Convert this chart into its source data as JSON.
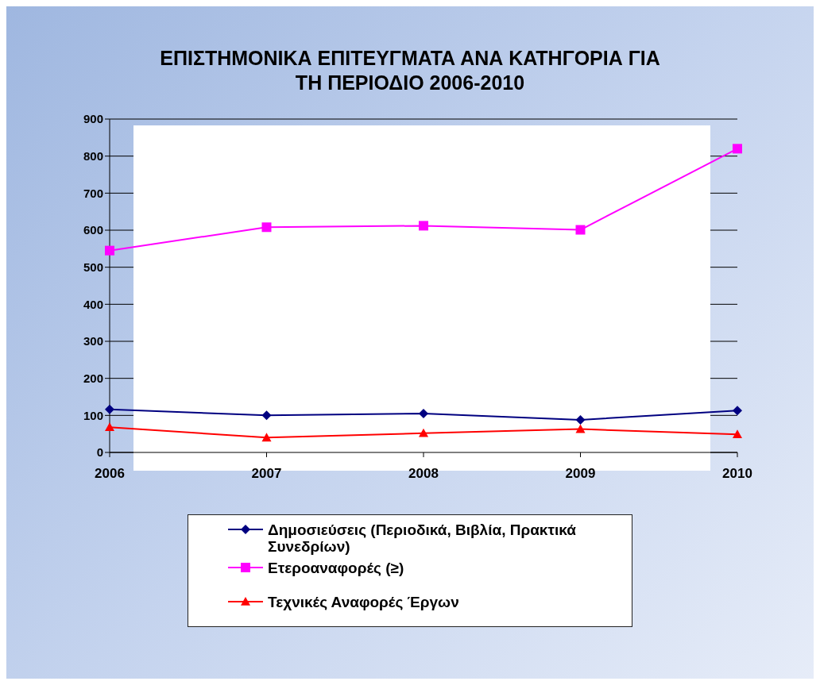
{
  "chart_data": {
    "type": "line",
    "title": "ΕΠΙΣΤΗΜΟΝΙΚΑ ΕΠΙΤΕΥΓΜΑΤΑ ΑΝΑ ΚΑΤΗΓΟΡΙΑ ΓΙΑ ΤΗ ΠΕΡΙΟΔΙΟ 2006-2010",
    "categories": [
      "2006",
      "2007",
      "2008",
      "2009",
      "2010"
    ],
    "series": [
      {
        "name": "Δημοσιεύσεις (Περιοδικά, Βιβλία, Πρακτικά Συνεδρίων)",
        "color": "#000080",
        "marker": "diamond",
        "values": [
          116,
          100,
          105,
          88,
          113
        ]
      },
      {
        "name": "Ετεροαναφορές (≥)",
        "color": "#ff00ff",
        "marker": "square",
        "values": [
          545,
          608,
          612,
          601,
          820
        ]
      },
      {
        "name": "Τεχνικές Αναφορές Έργων",
        "color": "#ff0000",
        "marker": "triangle",
        "values": [
          68,
          40,
          52,
          63,
          49
        ]
      }
    ],
    "ylim": [
      0,
      900
    ],
    "yticks": [
      0,
      100,
      200,
      300,
      400,
      500,
      600,
      700,
      800,
      900
    ],
    "grid": "y",
    "legend": "bottom"
  }
}
